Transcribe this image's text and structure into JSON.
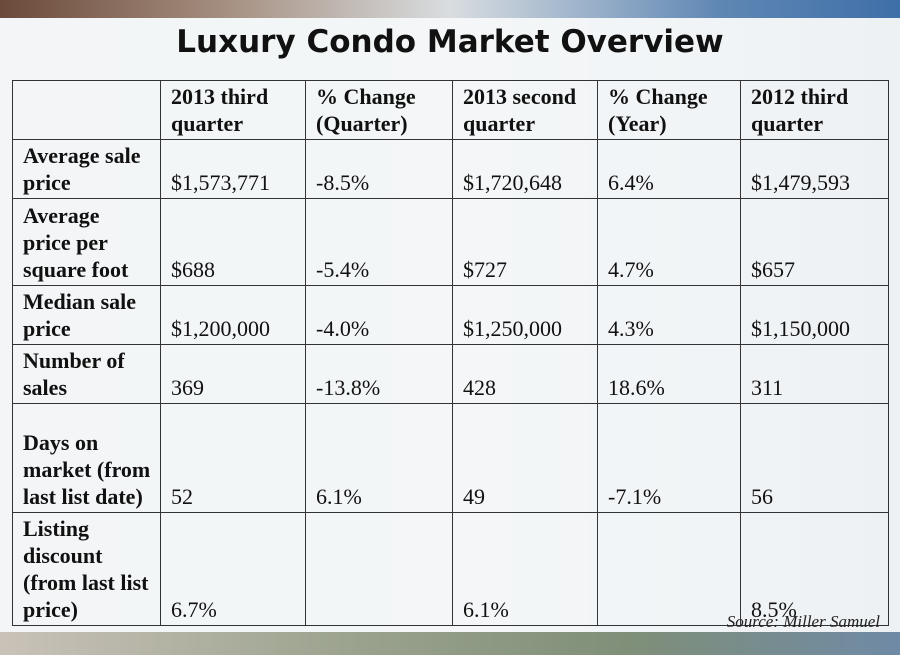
{
  "title": "Luxury Condo Market Overview",
  "table": {
    "header": [
      null,
      "2013 third quarter",
      "% Change (Quarter)",
      "2013 second quarter",
      "% Change (Year)",
      "2012 third quarter"
    ],
    "rows": [
      [
        "Average sale price",
        "$1,573,771",
        "-8.5%",
        "$1,720,648",
        "6.4%",
        "$1,479,593"
      ],
      [
        "Average price per square foot",
        "$688",
        "-5.4%",
        "$727",
        "4.7%",
        "$657"
      ],
      [
        "Median sale price",
        "$1,200,000",
        "-4.0%",
        "$1,250,000",
        "4.3%",
        "$1,150,000"
      ],
      [
        "Number of sales",
        "369",
        "-13.8%",
        "428",
        "18.6%",
        "311"
      ],
      [
        "Days on market (from last list date)",
        "52",
        "6.1%",
        "49",
        "-7.1%",
        "56"
      ],
      [
        "Listing discount (from last list price)",
        "6.7%",
        null,
        "6.1%",
        null,
        "8.5%"
      ]
    ]
  },
  "source": "Source: Miller Samuel"
}
